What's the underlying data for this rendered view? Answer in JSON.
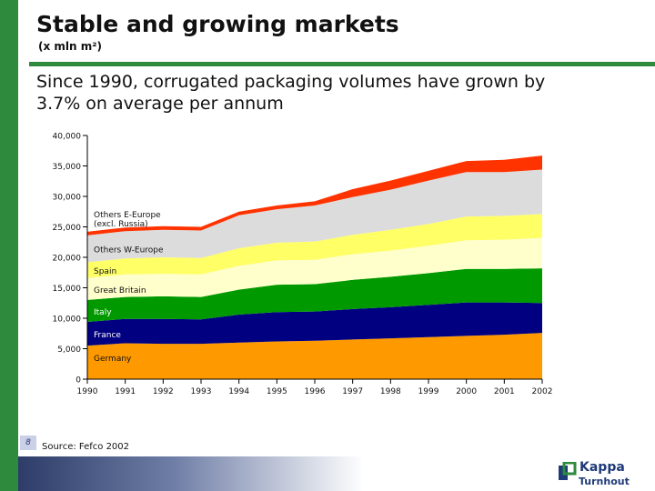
{
  "slide": {
    "title": "Stable and growing markets",
    "subtitle": "(x mln m²)",
    "headline": "Since 1990, corrugated packaging volumes have grown by 3.7% on average per annum",
    "source": "Source: Fefco 2002",
    "page_number": "8",
    "logo_name": "Kappa",
    "logo_sub": "Turnhout"
  },
  "colors": {
    "accent_green": "#2e8b3e",
    "footer_navy": "#2d3c68"
  },
  "chart_data": {
    "type": "area",
    "stacked": true,
    "x": [
      "1990",
      "1991",
      "1992",
      "1993",
      "1994",
      "1995",
      "1996",
      "1997",
      "1998",
      "1999",
      "2000",
      "2001",
      "2002"
    ],
    "ylim": [
      0,
      40000
    ],
    "yticks": [
      "0",
      "5,000",
      "10,000",
      "15,000",
      "20,000",
      "25,000",
      "30,000",
      "35,000",
      "40,000"
    ],
    "xlabel": "",
    "ylabel": "",
    "grid": false,
    "series": [
      {
        "name": "Germany",
        "color": "#ff9900",
        "values": [
          5500,
          5900,
          5800,
          5800,
          6000,
          6200,
          6300,
          6500,
          6700,
          6900,
          7100,
          7300,
          7600
        ]
      },
      {
        "name": "France",
        "color": "#000080",
        "values": [
          3900,
          4000,
          4100,
          4000,
          4600,
          4800,
          4800,
          5000,
          5100,
          5300,
          5500,
          5300,
          4900
        ]
      },
      {
        "name": "Italy",
        "color": "#009900",
        "values": [
          3600,
          3600,
          3700,
          3700,
          4100,
          4500,
          4500,
          4800,
          5000,
          5200,
          5500,
          5500,
          5700
        ]
      },
      {
        "name": "Great Britain",
        "color": "#ffffcc",
        "values": [
          3600,
          3700,
          3700,
          3700,
          3900,
          4000,
          4000,
          4200,
          4300,
          4500,
          4700,
          4800,
          5000
        ]
      },
      {
        "name": "Spain",
        "color": "#ffff66",
        "values": [
          2600,
          2600,
          2700,
          2700,
          2900,
          2900,
          3000,
          3200,
          3400,
          3600,
          3900,
          3900,
          3900
        ]
      },
      {
        "name": "Others W-Europe",
        "color": "#dcdcdc",
        "values": [
          4400,
          4500,
          4500,
          4500,
          5400,
          5500,
          5900,
          6200,
          6600,
          7100,
          7300,
          7200,
          7300
        ]
      },
      {
        "name": "Others E-Europe (excl. Russia)",
        "color": "#ff3300",
        "values": [
          600,
          600,
          600,
          600,
          600,
          600,
          700,
          1300,
          1500,
          1600,
          1800,
          2000,
          2300
        ]
      }
    ]
  }
}
